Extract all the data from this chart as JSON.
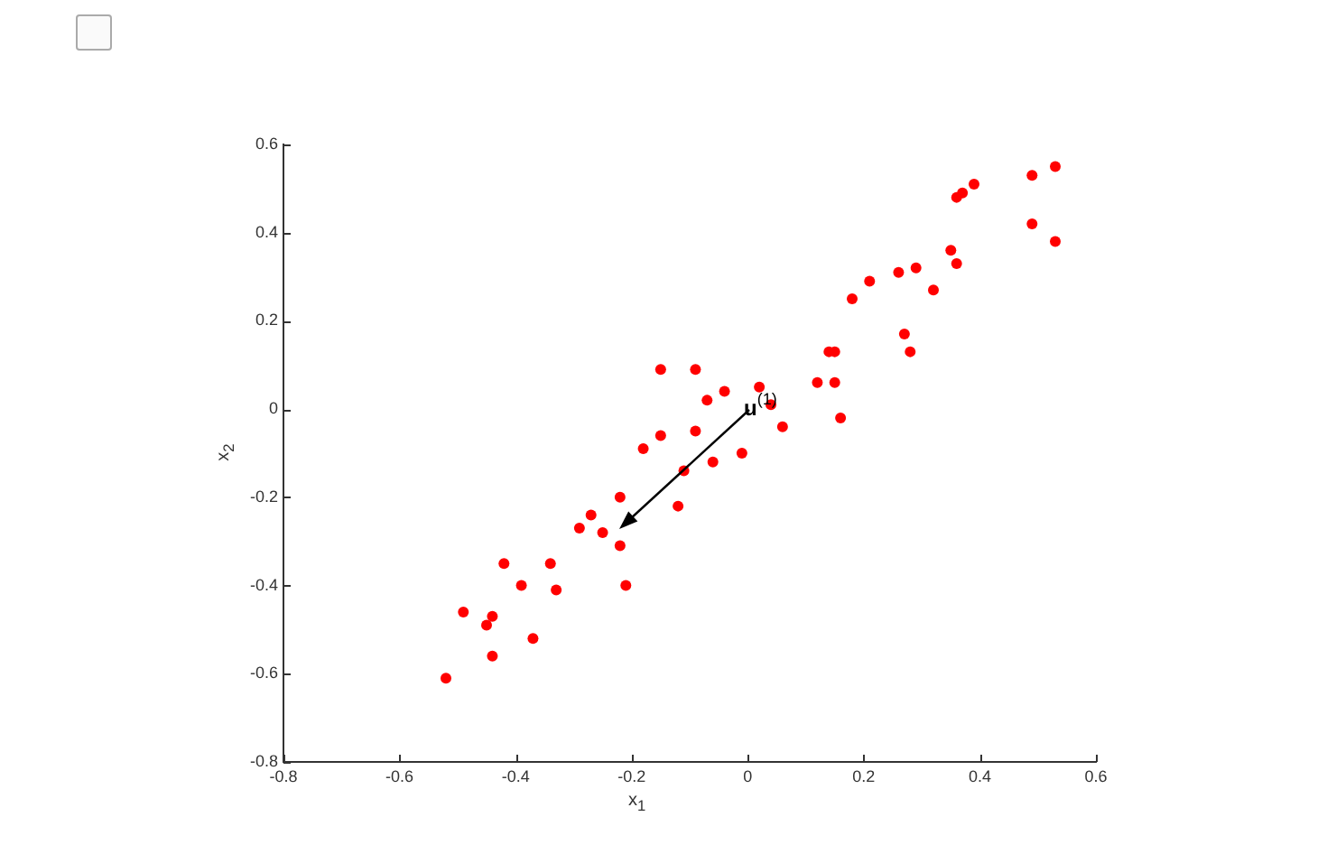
{
  "chart_data": {
    "type": "scatter",
    "xlabel": "x$_{1}$",
    "ylabel": "x$_{2}$",
    "xlim": [
      -0.8,
      0.6
    ],
    "xticks": [
      -0.8,
      -0.6,
      -0.4,
      -0.2,
      0,
      0.2,
      0.4,
      0.6
    ],
    "ylim": [
      -0.8,
      0.6
    ],
    "yticks": [
      -0.8,
      -0.6,
      -0.4,
      -0.2,
      0,
      0.2,
      0.4,
      0.6
    ],
    "grid": false,
    "legend": false,
    "marker": "circle",
    "annotations": [
      "u$^{(1)}$"
    ],
    "series": [
      {
        "color": "#ff0000",
        "x": [
          0.53,
          0.49,
          0.39,
          0.37,
          0.36,
          0.49,
          0.53,
          0.35,
          0.36,
          0.32,
          0.29,
          0.26,
          0.21,
          0.18,
          0.27,
          0.28,
          0.14,
          0.15,
          0.12,
          0.15,
          0.16,
          0.06,
          0.04,
          0.02,
          -0.15,
          -0.09,
          -0.07,
          -0.04,
          -0.15,
          -0.09,
          -0.18,
          -0.01,
          -0.06,
          -0.11,
          -0.22,
          -0.12,
          -0.27,
          -0.29,
          -0.25,
          -0.22,
          -0.42,
          -0.34,
          -0.39,
          -0.33,
          -0.21,
          -0.49,
          -0.45,
          -0.44,
          -0.37,
          -0.44,
          -0.52
        ],
        "values": [
          0.55,
          0.53,
          0.51,
          0.49,
          0.48,
          0.42,
          0.38,
          0.36,
          0.33,
          0.27,
          0.32,
          0.31,
          0.29,
          0.25,
          0.17,
          0.13,
          0.13,
          0.13,
          0.06,
          0.06,
          -0.02,
          -0.04,
          0.01,
          0.05,
          0.09,
          0.09,
          0.02,
          0.04,
          -0.06,
          -0.05,
          -0.09,
          -0.1,
          -0.12,
          -0.14,
          -0.2,
          -0.22,
          -0.24,
          -0.27,
          -0.28,
          -0.31,
          -0.35,
          -0.35,
          -0.4,
          -0.41,
          -0.4,
          -0.46,
          -0.49,
          -0.47,
          -0.52,
          -0.56,
          -0.61
        ]
      }
    ]
  }
}
